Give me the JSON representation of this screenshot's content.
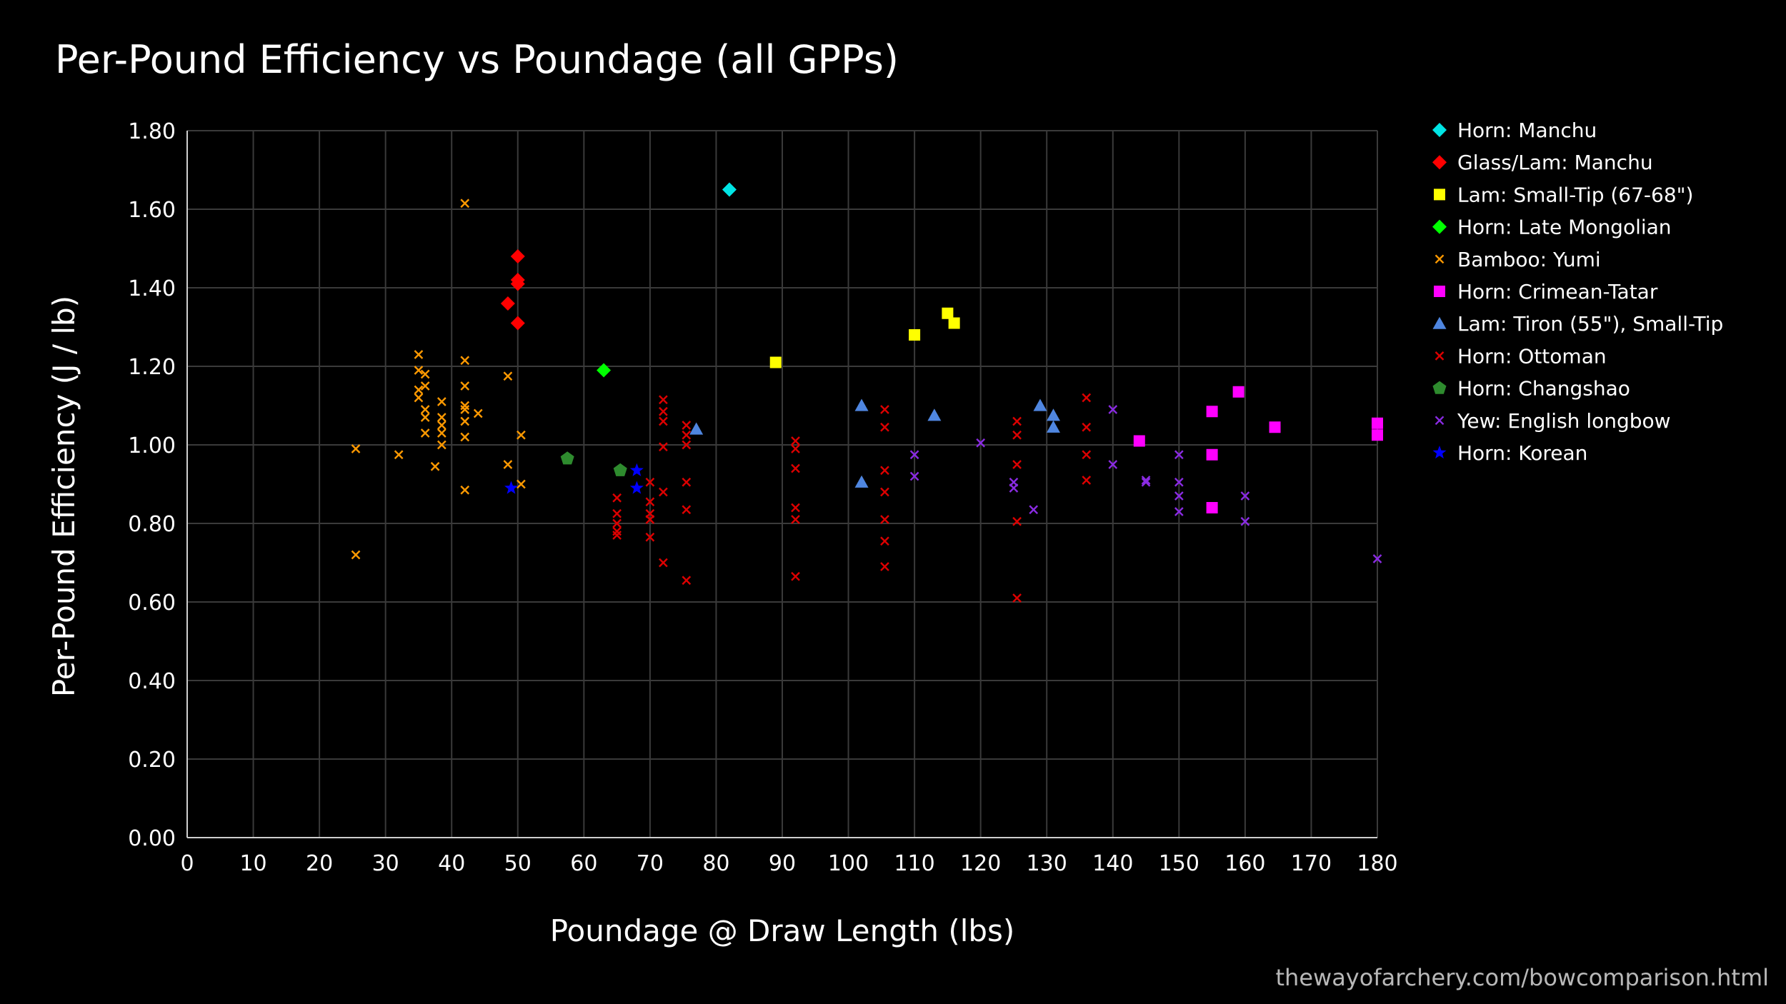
{
  "chart_data": {
    "type": "scatter",
    "title": "Per-Pound Efficiency vs Poundage (all GPPs)",
    "xlabel": "Poundage @ Draw Length (lbs)",
    "ylabel": "Per-Pound Efficiency (J / lb)",
    "xlim": [
      0,
      180
    ],
    "ylim": [
      0,
      1.8
    ],
    "x_ticks": [
      "0",
      "10",
      "20",
      "30",
      "40",
      "50",
      "60",
      "70",
      "80",
      "90",
      "100",
      "110",
      "120",
      "130",
      "140",
      "150",
      "160",
      "170",
      "180"
    ],
    "y_ticks": [
      "0.00",
      "0.20",
      "0.40",
      "0.60",
      "0.80",
      "1.00",
      "1.20",
      "1.40",
      "1.60",
      "1.80"
    ],
    "grid": true,
    "legend_position": "right",
    "series": [
      {
        "name": "Horn: Manchu",
        "marker": "diamond",
        "color": "#00e5e5",
        "points": [
          [
            82,
            1.65
          ]
        ]
      },
      {
        "name": "Glass/Lam: Manchu",
        "marker": "diamond",
        "color": "#ff0000",
        "points": [
          [
            48.5,
            1.36
          ],
          [
            50,
            1.48
          ],
          [
            50,
            1.42
          ],
          [
            50,
            1.41
          ],
          [
            50,
            1.31
          ]
        ]
      },
      {
        "name": "Lam: Small-Tip (67-68\")",
        "marker": "square",
        "color": "#ffff00",
        "points": [
          [
            89,
            1.21
          ],
          [
            110,
            1.28
          ],
          [
            115,
            1.335
          ],
          [
            116,
            1.31
          ]
        ]
      },
      {
        "name": "Horn: Late Mongolian",
        "marker": "diamond",
        "color": "#00ff00",
        "points": [
          [
            63,
            1.19
          ]
        ]
      },
      {
        "name": "Bamboo: Yumi",
        "marker": "x",
        "color": "#ff9900",
        "points": [
          [
            25.5,
            0.99
          ],
          [
            25.5,
            0.72
          ],
          [
            32,
            0.975
          ],
          [
            35,
            1.23
          ],
          [
            35,
            1.19
          ],
          [
            35,
            1.14
          ],
          [
            35,
            1.12
          ],
          [
            36,
            1.18
          ],
          [
            36,
            1.15
          ],
          [
            36,
            1.09
          ],
          [
            36,
            1.07
          ],
          [
            36,
            1.03
          ],
          [
            37.5,
            0.945
          ],
          [
            38.5,
            1.11
          ],
          [
            38.5,
            1.07
          ],
          [
            38.5,
            1.05
          ],
          [
            38.5,
            1.03
          ],
          [
            38.5,
            1.0
          ],
          [
            42,
            1.615
          ],
          [
            42,
            1.215
          ],
          [
            42,
            1.15
          ],
          [
            42,
            1.1
          ],
          [
            42,
            1.09
          ],
          [
            42,
            1.06
          ],
          [
            42,
            1.02
          ],
          [
            42,
            0.885
          ],
          [
            44,
            1.08
          ],
          [
            48.5,
            1.175
          ],
          [
            48.5,
            0.95
          ],
          [
            50.5,
            1.025
          ],
          [
            50.5,
            0.9
          ]
        ]
      },
      {
        "name": "Horn: Crimean-Tatar",
        "marker": "square",
        "color": "#ff00ff",
        "points": [
          [
            144,
            1.01
          ],
          [
            155,
            1.085
          ],
          [
            155,
            0.975
          ],
          [
            155,
            0.84
          ],
          [
            159,
            1.135
          ],
          [
            164.5,
            1.045
          ],
          [
            180,
            1.055
          ],
          [
            180,
            1.025
          ]
        ]
      },
      {
        "name": "Lam: Tiron (55\"), Small-Tip",
        "marker": "triangle",
        "color": "#4f86e0",
        "points": [
          [
            77,
            1.04
          ],
          [
            102,
            1.1
          ],
          [
            102,
            0.905
          ],
          [
            113,
            1.075
          ],
          [
            129,
            1.1
          ],
          [
            131,
            1.075
          ],
          [
            131,
            1.045
          ]
        ]
      },
      {
        "name": "Horn: Ottoman",
        "marker": "x",
        "color": "#dd0000",
        "points": [
          [
            65,
            0.865
          ],
          [
            65,
            0.825
          ],
          [
            65,
            0.8
          ],
          [
            65,
            0.78
          ],
          [
            65,
            0.77
          ],
          [
            70,
            0.905
          ],
          [
            70,
            0.855
          ],
          [
            70,
            0.825
          ],
          [
            70,
            0.81
          ],
          [
            70,
            0.765
          ],
          [
            72,
            1.115
          ],
          [
            72,
            1.085
          ],
          [
            72,
            1.06
          ],
          [
            72,
            0.995
          ],
          [
            72,
            0.88
          ],
          [
            72,
            0.7
          ],
          [
            75.5,
            1.05
          ],
          [
            75.5,
            1.025
          ],
          [
            75.5,
            1.0
          ],
          [
            75.5,
            0.905
          ],
          [
            75.5,
            0.835
          ],
          [
            75.5,
            0.655
          ],
          [
            92,
            1.01
          ],
          [
            92,
            0.99
          ],
          [
            92,
            0.94
          ],
          [
            92,
            0.84
          ],
          [
            92,
            0.81
          ],
          [
            92,
            0.665
          ],
          [
            105.5,
            1.09
          ],
          [
            105.5,
            1.045
          ],
          [
            105.5,
            0.935
          ],
          [
            105.5,
            0.88
          ],
          [
            105.5,
            0.81
          ],
          [
            105.5,
            0.755
          ],
          [
            105.5,
            0.69
          ],
          [
            125.5,
            1.06
          ],
          [
            125.5,
            1.025
          ],
          [
            125.5,
            0.95
          ],
          [
            125.5,
            0.805
          ],
          [
            125.5,
            0.61
          ],
          [
            136,
            1.12
          ],
          [
            136,
            1.045
          ],
          [
            136,
            0.975
          ],
          [
            136,
            0.91
          ]
        ]
      },
      {
        "name": "Horn: Changshao",
        "marker": "pentagon",
        "color": "#2e8b2e",
        "points": [
          [
            57.5,
            0.965
          ],
          [
            65.5,
            0.935
          ]
        ]
      },
      {
        "name": "Yew: English longbow",
        "marker": "x",
        "color": "#8a2be2",
        "points": [
          [
            110,
            0.975
          ],
          [
            110,
            0.92
          ],
          [
            120,
            1.005
          ],
          [
            125,
            0.905
          ],
          [
            125,
            0.89
          ],
          [
            128,
            0.835
          ],
          [
            140,
            1.09
          ],
          [
            140,
            0.95
          ],
          [
            145,
            0.91
          ],
          [
            145,
            0.905
          ],
          [
            150,
            0.975
          ],
          [
            150,
            0.905
          ],
          [
            150,
            0.87
          ],
          [
            150,
            0.83
          ],
          [
            160,
            0.87
          ],
          [
            160,
            0.805
          ],
          [
            180,
            0.71
          ]
        ]
      },
      {
        "name": "Horn: Korean",
        "marker": "star",
        "color": "#0000ff",
        "points": [
          [
            49,
            0.89
          ],
          [
            68,
            0.935
          ],
          [
            68,
            0.89
          ]
        ]
      }
    ]
  },
  "footer": {
    "source": "thewayofarchery.com/bowcomparison.html"
  }
}
